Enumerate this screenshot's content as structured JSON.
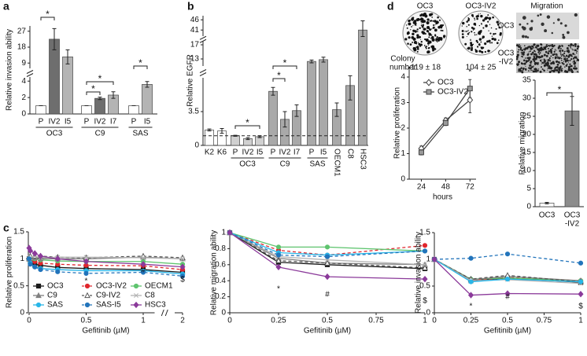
{
  "panel_labels": [
    "a",
    "b",
    "c",
    "d"
  ],
  "colony_assay": {
    "titles": [
      "OC3",
      "OC3-IV2"
    ],
    "row_label": [
      "Colony",
      "number"
    ],
    "counts": [
      "119 ± 18",
      "104 ± 25"
    ]
  },
  "migration_images": {
    "title": "Migration",
    "rows": [
      "OC3",
      [
        "OC3",
        "-IV2"
      ]
    ]
  },
  "chart_data": [
    {
      "type": "bar",
      "y_label": "Relative invasion ability",
      "ylim": [
        0,
        30
      ],
      "axis_breaks": [
        [
          4.5,
          6
        ]
      ],
      "yticks": [
        0,
        2,
        4,
        9,
        18,
        27
      ],
      "groups": [
        {
          "name": "OC3",
          "categories": [
            "P",
            "IV2",
            "I5"
          ],
          "values": [
            1,
            22.5,
            12.5
          ],
          "errors": [
            0,
            6,
            4
          ],
          "colors": [
            "#ffffff",
            "#6e6e6e",
            "#b4b4b4"
          ]
        },
        {
          "name": "C9",
          "categories": [
            "P",
            "IV2",
            "I7"
          ],
          "values": [
            1,
            1.9,
            2.3
          ],
          "errors": [
            0,
            0.15,
            0.4
          ],
          "colors": [
            "#ffffff",
            "#6e6e6e",
            "#b4b4b4"
          ]
        },
        {
          "name": "SAS",
          "categories": [
            "P",
            "I5"
          ],
          "values": [
            1,
            3.6
          ],
          "errors": [
            0,
            0.35
          ],
          "colors": [
            "#ffffff",
            "#b4b4b4"
          ]
        }
      ],
      "significance": [
        "*",
        "*",
        "*",
        "*"
      ]
    },
    {
      "type": "bar",
      "y_label": "Relative EGFR",
      "ylim": [
        0,
        48
      ],
      "axis_breaks": [
        [
          7,
          11
        ],
        [
          18,
          38
        ]
      ],
      "yticks": [
        0,
        3.5,
        13,
        17,
        41,
        46
      ],
      "reference_line": 1,
      "groups": [
        {
          "categories": [
            "K2",
            "K6"
          ],
          "values": [
            1.6,
            1.5
          ],
          "errors": [
            0.1,
            0.25
          ],
          "colors": [
            "#ffffff",
            "#ffffff"
          ]
        },
        {
          "name": "OC3",
          "categories": [
            "P",
            "IV2",
            "I5"
          ],
          "values": [
            1,
            0.7,
            0.9
          ],
          "errors": [
            0.05,
            0.1,
            0.1
          ],
          "colors": [
            "#d0d0d0",
            "#d0d0d0",
            "#d0d0d0"
          ]
        },
        {
          "name": "C9",
          "categories": [
            "P",
            "IV2",
            "I7"
          ],
          "values": [
            5.6,
            2.7,
            3.6
          ],
          "errors": [
            0.4,
            0.8,
            0.6
          ],
          "colors": [
            "#a9a9a9",
            "#a9a9a9",
            "#a9a9a9"
          ]
        },
        {
          "name": "SAS",
          "categories": [
            "P",
            "I5"
          ],
          "values": [
            12.3,
            12.8
          ],
          "errors": [
            0.4,
            0.7
          ],
          "colors": [
            "#a9a9a9",
            "#a9a9a9"
          ]
        },
        {
          "categories": [
            "OECM1",
            "C8",
            "HSC3"
          ],
          "vertical_labels": true,
          "values": [
            3.7,
            6.2,
            41
          ],
          "errors": [
            0.7,
            1.5,
            4.5
          ],
          "colors": [
            "#a9a9a9",
            "#a9a9a9",
            "#a9a9a9"
          ]
        }
      ],
      "significance": [
        "*",
        "*",
        "*"
      ]
    },
    {
      "type": "line",
      "y_label": "Relative proliferation",
      "x_label": "Gefitinib (µM)",
      "x": [
        0,
        0.01,
        0.05,
        0.1,
        0.25,
        0.5,
        1,
        2
      ],
      "xlim": [
        0,
        2
      ],
      "x_axis_breaks": [
        [
          1.1,
          1.9
        ]
      ],
      "xticks": [
        0,
        0.5,
        1,
        2
      ],
      "ylim": [
        0,
        1.5
      ],
      "yticks": [
        0,
        0.5,
        1,
        1.5
      ],
      "legend": "lower left",
      "series": [
        {
          "name": "OC3",
          "color": "#1a1a1a",
          "dashed": false,
          "marker": "square",
          "values": [
            1,
            0.95,
            0.9,
            0.88,
            0.84,
            0.82,
            0.8,
            0.75
          ]
        },
        {
          "name": "OC3-IV2",
          "color": "#e0262c",
          "dashed": true,
          "marker": "circle",
          "values": [
            1,
            0.98,
            0.95,
            0.92,
            0.9,
            0.88,
            0.87,
            0.8
          ]
        },
        {
          "name": "OECM1",
          "color": "#5ec46e",
          "dashed": false,
          "marker": "circle",
          "values": [
            1,
            1.02,
            1,
            0.98,
            0.96,
            0.95,
            0.95,
            0.9
          ]
        },
        {
          "name": "C9",
          "color": "#808080",
          "dashed": false,
          "marker": "triangle",
          "values": [
            1,
            1,
            1.02,
            1,
            1,
            1,
            1.03,
            1
          ]
        },
        {
          "name": "C9-IV2",
          "color": "#555555",
          "dashed": true,
          "marker": "triangle",
          "marker_fill": "#ffffff",
          "values": [
            1,
            1.05,
            1.05,
            1.05,
            1.03,
            1.02,
            1.05,
            1.02
          ]
        },
        {
          "name": "C8",
          "color": "#b3b3b3",
          "dashed": false,
          "marker": "cross",
          "values": [
            1,
            1.02,
            1.05,
            1.02,
            1.03,
            1.03,
            1.02,
            1
          ]
        },
        {
          "name": "SAS",
          "color": "#29b6e8",
          "dashed": false,
          "marker": "circle",
          "values": [
            1,
            0.92,
            0.85,
            0.82,
            0.8,
            0.78,
            0.78,
            0.72
          ]
        },
        {
          "name": "SAS-I5",
          "color": "#2274bb",
          "dashed": true,
          "marker": "circle",
          "values": [
            1,
            0.9,
            0.85,
            0.8,
            0.76,
            0.73,
            0.75,
            0.68
          ]
        },
        {
          "name": "HSC3",
          "color": "#8b3a9a",
          "dashed": false,
          "marker": "diamond",
          "values": [
            1.2,
            1.15,
            1.1,
            1.05,
            1,
            0.95,
            0.9,
            0.85
          ]
        }
      ],
      "annotations": [
        {
          "text": "*",
          "x": 0.5
        },
        {
          "text": "#",
          "x": 1
        },
        {
          "text": "$",
          "x": 2
        }
      ]
    },
    {
      "type": "line",
      "y_label": "Relative migration ability",
      "x_label": "Gefitinib (µM)",
      "x": [
        0,
        0.25,
        0.5,
        1
      ],
      "xlim": [
        0,
        1
      ],
      "xticks": [
        0,
        0.25,
        0.5,
        0.75,
        1
      ],
      "ylim": [
        0,
        1
      ],
      "yticks": [
        0,
        0.2,
        0.4,
        0.6,
        0.8,
        1
      ],
      "series": [
        {
          "color": "#1a1a1a",
          "dashed": false,
          "marker": "square",
          "values": [
            1,
            0.63,
            0.6,
            0.55
          ]
        },
        {
          "color": "#e0262c",
          "dashed": true,
          "marker": "circle",
          "values": [
            1,
            0.78,
            0.72,
            0.84
          ]
        },
        {
          "color": "#5ec46e",
          "dashed": false,
          "marker": "circle",
          "values": [
            1,
            0.82,
            0.82,
            0.77
          ]
        },
        {
          "color": "#808080",
          "dashed": false,
          "marker": "triangle",
          "values": [
            1,
            0.68,
            0.62,
            0.6
          ]
        },
        {
          "color": "#555555",
          "dashed": true,
          "marker": "triangle",
          "marker_fill": "#ffffff",
          "values": [
            1,
            0.65,
            0.62,
            0.56
          ]
        },
        {
          "color": "#b3b3b3",
          "dashed": false,
          "marker": "cross",
          "values": [
            1,
            0.7,
            0.66,
            0.6
          ]
        },
        {
          "color": "#29b6e8",
          "dashed": false,
          "marker": "circle",
          "values": [
            1,
            0.75,
            0.72,
            0.77
          ]
        },
        {
          "color": "#2274bb",
          "dashed": true,
          "marker": "circle",
          "values": [
            1,
            0.72,
            0.7,
            0.77
          ]
        },
        {
          "color": "#8b3a9a",
          "dashed": false,
          "marker": "diamond",
          "values": [
            1,
            0.57,
            0.45,
            0.42
          ]
        }
      ],
      "annotations": [
        {
          "text": "*",
          "x": 0.25
        },
        {
          "text": "#",
          "x": 0.5
        },
        {
          "text": "$",
          "x": 1
        }
      ]
    },
    {
      "type": "line",
      "y_label": "Relative invasion ability",
      "x_label": "Gefitinib (µM)",
      "x": [
        0,
        0.25,
        0.5,
        1
      ],
      "xlim": [
        0,
        1
      ],
      "xticks": [
        0,
        0.25,
        0.5,
        0.75,
        1
      ],
      "ylim": [
        0,
        1.5
      ],
      "yticks": [
        0,
        0.5,
        1,
        1.5
      ],
      "series": [
        {
          "color": "#1a1a1a",
          "dashed": false,
          "marker": "square",
          "values": [
            1,
            0.6,
            0.65,
            0.57
          ]
        },
        {
          "color": "#e0262c",
          "dashed": true,
          "marker": "circle",
          "values": [
            1,
            0.6,
            0.66,
            0.6
          ]
        },
        {
          "color": "#5ec46e",
          "dashed": false,
          "marker": "circle",
          "values": [
            1,
            0.63,
            0.65,
            0.6
          ]
        },
        {
          "color": "#808080",
          "dashed": false,
          "marker": "triangle",
          "values": [
            1,
            0.62,
            0.68,
            0.6
          ]
        },
        {
          "color": "#555555",
          "dashed": true,
          "marker": "triangle",
          "marker_fill": "#ffffff",
          "values": [
            1,
            0.63,
            0.7,
            0.58
          ]
        },
        {
          "color": "#b3b3b3",
          "dashed": false,
          "marker": "cross",
          "values": [
            1,
            0.6,
            0.62,
            0.55
          ]
        },
        {
          "color": "#29b6e8",
          "dashed": false,
          "marker": "circle",
          "values": [
            1,
            0.58,
            0.63,
            0.58
          ]
        },
        {
          "color": "#2274bb",
          "dashed": true,
          "marker": "circle",
          "values": [
            1,
            1.02,
            1.1,
            0.93
          ]
        },
        {
          "color": "#8b3a9a",
          "dashed": false,
          "marker": "diamond",
          "values": [
            1,
            0.33,
            0.36,
            0.35
          ]
        }
      ],
      "annotations": [
        {
          "text": "*",
          "x": 0.25
        },
        {
          "text": "#",
          "x": 0.5
        },
        {
          "text": "$",
          "x": 1
        }
      ]
    },
    {
      "type": "line",
      "y_label": "Relative proliferation",
      "x_label": "hours",
      "x": [
        24,
        48,
        72
      ],
      "xlim": [
        12,
        78
      ],
      "xticks": [
        24,
        48,
        72
      ],
      "ylim": [
        0,
        4.4
      ],
      "yticks": [
        0,
        1,
        2,
        3,
        4
      ],
      "legend": "upper left",
      "series": [
        {
          "name": "OC3",
          "color": "#444444",
          "dashed": false,
          "marker": "diamond",
          "marker_fill": "#ffffff",
          "values": [
            1.2,
            2.3,
            3.1
          ],
          "errors": [
            0.1,
            0.1,
            0.5
          ]
        },
        {
          "name": "OC3-IV2",
          "color": "#444444",
          "dashed": false,
          "marker": "square",
          "marker_fill": "#9a9a9a",
          "values": [
            1.05,
            2.2,
            3.55
          ],
          "errors": [
            0.1,
            0.1,
            0.35
          ]
        }
      ],
      "annotations": [
        {
          "text": "*",
          "x": 72
        }
      ]
    },
    {
      "type": "bar",
      "y_label": "Relative migration",
      "ylim": [
        0,
        35
      ],
      "yticks": [
        0,
        5,
        10,
        15,
        20,
        25,
        30,
        35
      ],
      "groups": [
        {
          "categories": [
            "OC3",
            [
              "OC3",
              "-IV2"
            ]
          ],
          "values": [
            1,
            26.5
          ],
          "errors": [
            0.2,
            4
          ],
          "colors": [
            "#ffffff",
            "#8c8c8c"
          ]
        }
      ],
      "significance": [
        "*"
      ]
    }
  ]
}
